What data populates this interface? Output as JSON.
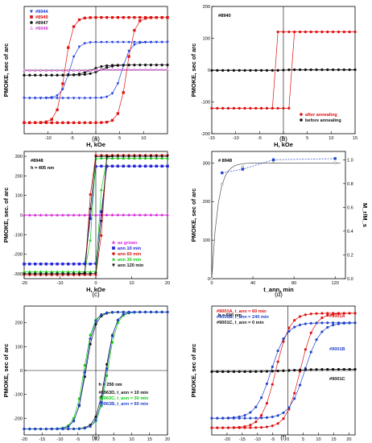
{
  "chart_data": [
    {
      "id": "a",
      "type": "scatter",
      "caption": "(a)",
      "xlabel": "H, kOe",
      "ylabel": "PMOKE, sec of arc",
      "xlim": [
        -15,
        15
      ],
      "ylim": [
        -75,
        75
      ],
      "xticks": [
        -10,
        -5,
        0,
        5,
        10
      ],
      "yticks": [],
      "legend_position": "top-left",
      "series": [
        {
          "name": "#8944",
          "color": "#1f3fe0",
          "marker": "triangle-down",
          "loop": {
            "Ms": 33,
            "Hc": 5.5,
            "w": 1.7,
            "slope": 0.0
          }
        },
        {
          "name": "#8949",
          "color": "#e01010",
          "marker": "square",
          "loop": {
            "Ms": 62,
            "Hc": 6.5,
            "w": 1.6,
            "slope": 0.0
          }
        },
        {
          "name": "#8947",
          "color": "#111111",
          "marker": "circle",
          "loop": {
            "Ms": 6,
            "Hc": 1.0,
            "w": 2.5,
            "slope": 0.0
          }
        },
        {
          "name": "#8948",
          "color": "#cc44cc",
          "marker": "triangle-up-open",
          "loop": {
            "Ms": 0.5,
            "Hc": 0.0,
            "w": 1.0,
            "slope": 0.0
          }
        }
      ]
    },
    {
      "id": "b",
      "type": "scatter",
      "caption": "(b)",
      "title": "#8940",
      "xlabel": "H, kOe",
      "ylabel": "PMOKE, sec of arc",
      "xlim": [
        -15,
        15
      ],
      "ylim": [
        -200,
        200
      ],
      "xticks": [
        -15,
        -10,
        -5,
        0,
        5,
        10,
        15
      ],
      "yticks": [
        -200,
        -100,
        0,
        100,
        200
      ],
      "legend_position": "bottom-right",
      "series": [
        {
          "name": "after annealing",
          "color": "#e01010",
          "marker": "circle",
          "loop": {
            "Ms": 120,
            "Hc": 1.8,
            "w": 0.12,
            "slope": 0.0
          }
        },
        {
          "name": "before annealing",
          "color": "#111111",
          "marker": "circle",
          "loop": {
            "Ms": 1,
            "Hc": 0.0,
            "w": 1.0,
            "slope": 0.0
          }
        }
      ]
    },
    {
      "id": "c",
      "type": "scatter",
      "caption": "(c)",
      "title": "#8948",
      "subtitle": "h = 405 nm",
      "xlabel": "H, kOe",
      "ylabel": "PMOKE, sec. of arc",
      "xlim": [
        -20,
        20
      ],
      "ylim": [
        -325,
        325
      ],
      "xticks": [
        -20,
        -10,
        0,
        10,
        20
      ],
      "yticks": [
        -300,
        -200,
        -100,
        0,
        100,
        200,
        300
      ],
      "legend_position": "bottom-right",
      "series": [
        {
          "name": "as grown",
          "color": "#dd22dd",
          "marker": "triangle-up",
          "loop": {
            "Ms": 0.5,
            "Hc": 0.0,
            "w": 1.0,
            "slope": 0.0
          }
        },
        {
          "name": "ann 10 min",
          "color": "#2222dd",
          "marker": "square",
          "loop": {
            "Ms": 250,
            "Hc": 1.5,
            "w": 0.55,
            "slope": 0.0
          }
        },
        {
          "name": "ann 60 min",
          "color": "#dd1111",
          "marker": "circle",
          "loop": {
            "Ms": 305,
            "Hc": 1.7,
            "w": 0.45,
            "slope": 0.0
          }
        },
        {
          "name": "ann 30 min",
          "color": "#11cc11",
          "marker": "triangle-up",
          "loop": {
            "Ms": 290,
            "Hc": 1.3,
            "w": 0.5,
            "slope": 0.0
          }
        },
        {
          "name": "ann 120 min",
          "color": "#111111",
          "marker": "triangle-down",
          "loop": {
            "Ms": 300,
            "Hc": 1.6,
            "w": 0.6,
            "slope": 0.0
          }
        }
      ]
    },
    {
      "id": "d",
      "type": "scatter",
      "caption": "(d)",
      "title": "# 8948",
      "xlabel": "t_ann, min",
      "ylabel": "PMOKE, sec of arc",
      "y2label": "M_r/M_s",
      "xlim": [
        0,
        130
      ],
      "ylim": [
        0,
        330
      ],
      "y2lim": [
        0,
        1.07
      ],
      "xticks": [
        0,
        40,
        80,
        120
      ],
      "yticks": [
        0,
        100,
        200,
        300
      ],
      "y2ticks": [
        0.0,
        0.2,
        0.4,
        0.6,
        0.8,
        1.0
      ],
      "series": [
        {
          "name": "PMOKE",
          "axis": "left",
          "color": "#555555",
          "marker": "circle-open",
          "line": "solid",
          "x": [
            0,
            10,
            30,
            60,
            120
          ],
          "y": [
            0,
            245,
            290,
            305,
            300
          ]
        },
        {
          "name": "M_r/M_s",
          "axis": "right",
          "color": "#2244cc",
          "marker": "square",
          "line": "dashed",
          "x": [
            10,
            30,
            60,
            120
          ],
          "y": [
            0.89,
            0.92,
            1.0,
            1.01
          ]
        }
      ]
    },
    {
      "id": "e",
      "type": "scatter",
      "caption": "(e)",
      "subtitle": "h = 250 nm",
      "xlabel": "H, kOe",
      "ylabel": "PMOKE, sec of arc",
      "xlim": [
        -20,
        20
      ],
      "ylim": [
        -270,
        270
      ],
      "xticks": [
        -20,
        -15,
        -10,
        -5,
        0,
        5,
        10,
        15,
        20
      ],
      "yticks": [
        -200,
        -100,
        0,
        100,
        200
      ],
      "legend_position": "bottom-right",
      "series": [
        {
          "name": "#8963D, t_ann = 10 min",
          "color": "#111111",
          "marker": "circle",
          "loop": {
            "Ms": 245,
            "Hc": 2.8,
            "w": 2.6,
            "slope": 0.0
          }
        },
        {
          "name": "#8963C, t_ann = 30 min",
          "color": "#11cc11",
          "marker": "circle",
          "loop": {
            "Ms": 245,
            "Hc": 3.3,
            "w": 2.5,
            "slope": 0.0
          }
        },
        {
          "name": "#8963B, t_ann = 60 min",
          "color": "#2244cc",
          "marker": "circle",
          "loop": {
            "Ms": 245,
            "Hc": 3.0,
            "w": 2.4,
            "slope": 0.0
          }
        }
      ]
    },
    {
      "id": "f",
      "type": "scatter",
      "caption": "(f)",
      "subtitle": "h = 500 nm",
      "xlabel": "H, kOe",
      "ylabel": "PMOKE, sec of arc",
      "xlim": [
        -25,
        22
      ],
      "ylim": [
        -270,
        270
      ],
      "xticks": [
        -20,
        -15,
        -10,
        -5,
        0,
        5,
        10,
        15,
        20
      ],
      "yticks": [],
      "legend_position": "top-left",
      "annotations": [
        "#9001A",
        "#9001B",
        "#9001C"
      ],
      "series": [
        {
          "name": "#9001A, t_ann = 60 min",
          "color": "#e01010",
          "marker": "circle",
          "loop": {
            "Ms": 240,
            "Hc": 4.0,
            "w": 4.5,
            "slope": 0.0
          }
        },
        {
          "name": "#9001B, t_ann = 240 min",
          "color": "#2244cc",
          "marker": "circle",
          "loop": {
            "Ms": 200,
            "Hc": 5.5,
            "w": 5.0,
            "slope": 0.0
          }
        },
        {
          "name": "#9001C, t_ann = 0 min",
          "color": "#111111",
          "marker": "circle",
          "loop": {
            "Ms": 5,
            "Hc": 0.0,
            "w": 8.0,
            "slope": 0.0
          }
        }
      ]
    }
  ]
}
